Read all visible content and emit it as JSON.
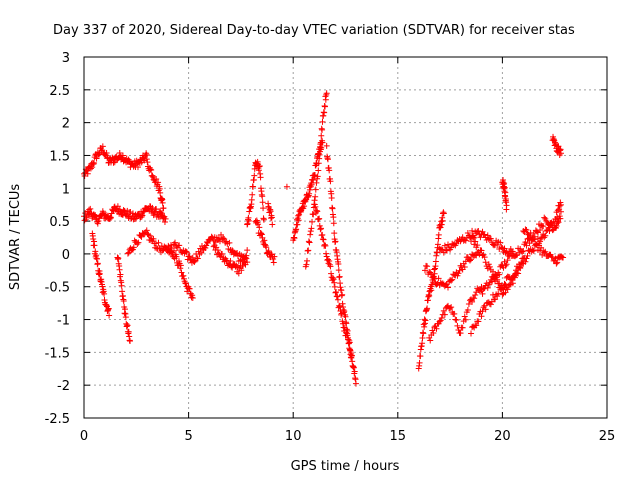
{
  "chart_data": {
    "type": "scatter",
    "title": "Day 337 of 2020, Sidereal Day-to-day VTEC variation (SDTVAR) for receiver stas",
    "xlabel": "GPS time / hours",
    "ylabel": "SDTVAR / TECUs",
    "xlim": [
      0,
      25
    ],
    "ylim": [
      -2.5,
      3
    ],
    "xticks": [
      "0",
      "5",
      "10",
      "15",
      "20",
      "25"
    ],
    "yticks": [
      "-2.5",
      "-2",
      "-1.5",
      "-1",
      "-0.5",
      "0",
      "0.5",
      "1",
      "1.5",
      "2",
      "2.5",
      "3"
    ],
    "grid": true,
    "marker": "+",
    "series": [
      {
        "name": "SDTVAR",
        "color": "#ff0000",
        "segments": [
          {
            "t": [
              0.0,
              0.3,
              0.6,
              0.9,
              1.2,
              1.5,
              1.8,
              2.1,
              2.4,
              2.7,
              3.0
            ],
            "v": [
              1.2,
              1.3,
              1.5,
              1.6,
              1.4,
              1.45,
              1.5,
              1.4,
              1.35,
              1.4,
              1.5
            ]
          },
          {
            "t": [
              0.0,
              0.3,
              0.6,
              0.9,
              1.2,
              1.5,
              1.8,
              2.1,
              2.4,
              2.7,
              3.0,
              3.3,
              3.6,
              3.9
            ],
            "v": [
              0.55,
              0.65,
              0.5,
              0.6,
              0.55,
              0.7,
              0.65,
              0.6,
              0.55,
              0.6,
              0.7,
              0.65,
              0.6,
              0.5
            ]
          },
          {
            "t": [
              0.4,
              0.6,
              0.8,
              1.0,
              1.2
            ],
            "v": [
              0.3,
              -0.1,
              -0.4,
              -0.7,
              -0.9
            ]
          },
          {
            "t": [
              1.6,
              1.8,
              2.0,
              2.2
            ],
            "v": [
              0.0,
              -0.5,
              -1.0,
              -1.35
            ]
          },
          {
            "t": [
              2.1,
              2.5,
              3.0,
              3.4,
              3.8,
              4.2
            ],
            "v": [
              0.0,
              0.2,
              0.3,
              0.15,
              0.05,
              0.1
            ]
          },
          {
            "t": [
              3.0,
              3.3,
              3.6,
              3.8
            ],
            "v": [
              1.4,
              1.2,
              1.0,
              0.7
            ]
          },
          {
            "t": [
              4.0,
              4.3,
              4.6,
              4.9,
              5.2
            ],
            "v": [
              0.1,
              0.0,
              -0.2,
              -0.5,
              -0.65
            ]
          },
          {
            "t": [
              4.3,
              4.8,
              5.2,
              5.6,
              6.0,
              6.5,
              7.0,
              7.4,
              7.8
            ],
            "v": [
              0.15,
              0.0,
              -0.1,
              0.05,
              0.2,
              0.25,
              0.1,
              -0.05,
              0.0
            ]
          },
          {
            "t": [
              6.2,
              6.6,
              7.0,
              7.4,
              7.8
            ],
            "v": [
              0.1,
              -0.05,
              -0.15,
              -0.25,
              -0.1
            ]
          },
          {
            "t": [
              7.8,
              8.0,
              8.2,
              8.4,
              8.6
            ],
            "v": [
              0.4,
              0.8,
              1.4,
              1.3,
              0.5
            ]
          },
          {
            "t": [
              8.2,
              8.5,
              8.8,
              9.1
            ],
            "v": [
              0.5,
              0.25,
              0.0,
              -0.1
            ]
          },
          {
            "t": [
              8.8,
              9.0
            ],
            "v": [
              0.75,
              0.5
            ]
          },
          {
            "t": [
              9.7
            ],
            "v": [
              1.05
            ]
          },
          {
            "t": [
              10.0,
              10.2,
              10.4,
              10.6,
              10.8,
              11.0,
              11.2,
              11.4
            ],
            "v": [
              0.2,
              0.5,
              0.7,
              0.8,
              1.0,
              1.2,
              1.5,
              1.75
            ]
          },
          {
            "t": [
              10.6,
              10.9,
              11.2,
              11.4,
              11.6
            ],
            "v": [
              -0.2,
              0.5,
              1.3,
              2.0,
              2.5
            ]
          },
          {
            "t": [
              11.6,
              11.8,
              12.0,
              12.2,
              12.4,
              12.6,
              12.8,
              13.0
            ],
            "v": [
              1.6,
              1.0,
              0.2,
              -0.3,
              -0.8,
              -1.2,
              -1.6,
              -1.95
            ]
          },
          {
            "t": [
              11.0,
              11.3,
              11.6,
              11.9,
              12.2,
              12.5,
              12.8
            ],
            "v": [
              0.8,
              0.4,
              0.0,
              -0.4,
              -0.8,
              -1.2,
              -1.5
            ]
          },
          {
            "t": [
              16.0,
              16.2,
              16.4,
              16.6,
              16.8,
              17.0,
              17.2
            ],
            "v": [
              -1.75,
              -1.2,
              -0.8,
              -0.5,
              -0.2,
              0.4,
              0.6
            ]
          },
          {
            "t": [
              16.3,
              16.8,
              17.3,
              17.8,
              18.3,
              18.8
            ],
            "v": [
              -0.2,
              -0.4,
              -0.5,
              -0.3,
              -0.1,
              0.0
            ]
          },
          {
            "t": [
              17.0,
              17.5,
              18.0,
              18.5,
              19.0,
              19.5,
              20.0,
              20.5
            ],
            "v": [
              0.05,
              0.1,
              0.2,
              0.3,
              0.3,
              0.2,
              0.1,
              0.0
            ]
          },
          {
            "t": [
              16.5,
              17.0,
              17.5,
              18.0,
              18.5,
              19.0
            ],
            "v": [
              -1.3,
              -1.0,
              -0.8,
              -1.2,
              -0.7,
              -0.5
            ]
          },
          {
            "t": [
              18.5,
              19.0,
              19.5,
              20.0,
              20.5,
              21.0,
              21.5,
              22.0,
              22.5,
              22.8
            ],
            "v": [
              -1.2,
              -0.9,
              -0.7,
              -0.5,
              -0.3,
              -0.1,
              0.1,
              0.3,
              0.5,
              0.8
            ]
          },
          {
            "t": [
              19.0,
              19.5,
              20.0,
              20.5,
              21.0,
              21.5,
              22.0,
              22.5,
              22.8
            ],
            "v": [
              -0.6,
              -0.4,
              -0.2,
              0.0,
              0.1,
              0.3,
              0.5,
              0.4,
              0.6
            ]
          },
          {
            "t": [
              18.5,
              19.0,
              19.5,
              20.0,
              20.5,
              21.0
            ],
            "v": [
              0.25,
              0.0,
              -0.3,
              -0.6,
              -0.4,
              -0.1
            ]
          },
          {
            "t": [
              20.0,
              20.1,
              20.2
            ],
            "v": [
              1.1,
              1.0,
              0.7
            ]
          },
          {
            "t": [
              21.0,
              21.5,
              22.0,
              22.5,
              22.9
            ],
            "v": [
              0.4,
              0.2,
              0.0,
              -0.1,
              -0.05
            ]
          },
          {
            "t": [
              22.4,
              22.6,
              22.8
            ],
            "v": [
              1.75,
              1.6,
              1.55
            ]
          }
        ]
      }
    ]
  }
}
